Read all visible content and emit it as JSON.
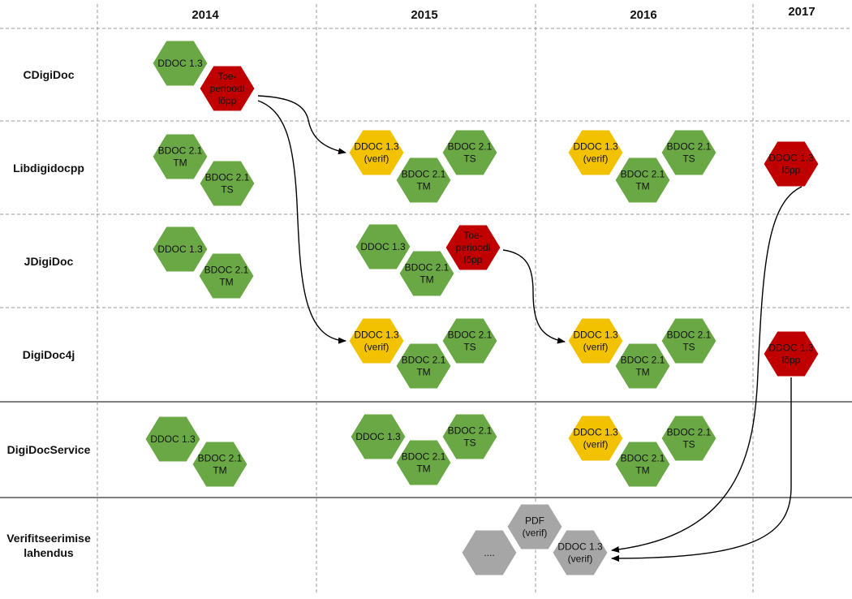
{
  "years": [
    "2014",
    "2015",
    "2016",
    "2017"
  ],
  "rows": [
    {
      "label": [
        "CDigiDoc"
      ]
    },
    {
      "label": [
        "Libdigidocpp"
      ]
    },
    {
      "label": [
        "JDigiDoc"
      ]
    },
    {
      "label": [
        "DigiDoc4j"
      ]
    },
    {
      "label": [
        "DigiDocService"
      ]
    },
    {
      "label": [
        "Verifitseerimise",
        "lahendus"
      ]
    }
  ],
  "colors": {
    "green": "#6aa845",
    "yellow": "#f2c200",
    "red": "#c00000",
    "gray": "#a6a6a6",
    "divider_dashed": "#9a9a9a",
    "divider_solid": "#7f7f7f",
    "arrow": "#000000"
  },
  "hexagons": [
    {
      "id": "cdd-ddoc13-2014",
      "row": 0,
      "color": "green",
      "lines": [
        "DDOC 1.3"
      ]
    },
    {
      "id": "cdd-toe-perioodi-lopp",
      "row": 0,
      "color": "red",
      "lines": [
        "Toe-",
        "perioodi",
        "lõpp"
      ]
    },
    {
      "id": "lib-bdoc21tm-2014",
      "row": 1,
      "color": "green",
      "lines": [
        "BDOC 2.1",
        "TM"
      ]
    },
    {
      "id": "lib-bdoc21ts-2014",
      "row": 1,
      "color": "green",
      "lines": [
        "BDOC 2.1",
        "TS"
      ]
    },
    {
      "id": "lib-ddoc13verif-2015",
      "row": 1,
      "color": "yellow",
      "lines": [
        "DDOC 1.3",
        "(verif)"
      ]
    },
    {
      "id": "lib-bdoc21tm-2015",
      "row": 1,
      "color": "green",
      "lines": [
        "BDOC 2.1",
        "TM"
      ]
    },
    {
      "id": "lib-bdoc21ts-2015",
      "row": 1,
      "color": "green",
      "lines": [
        "BDOC 2.1",
        "TS"
      ]
    },
    {
      "id": "lib-ddoc13verif-2016",
      "row": 1,
      "color": "yellow",
      "lines": [
        "DDOC 1.3",
        "(verif)"
      ]
    },
    {
      "id": "lib-bdoc21tm-2016",
      "row": 1,
      "color": "green",
      "lines": [
        "BDOC 2.1",
        "TM"
      ]
    },
    {
      "id": "lib-bdoc21ts-2016",
      "row": 1,
      "color": "green",
      "lines": [
        "BDOC 2.1",
        "TS"
      ]
    },
    {
      "id": "lib-ddoc13lopp-2017",
      "row": 1,
      "color": "red",
      "lines": [
        "DDOC 1.3",
        "lõpp"
      ]
    },
    {
      "id": "jdd-ddoc13-2014",
      "row": 2,
      "color": "green",
      "lines": [
        "DDOC 1.3"
      ]
    },
    {
      "id": "jdd-bdoc21tm-2014",
      "row": 2,
      "color": "green",
      "lines": [
        "BDOC 2.1",
        "TM"
      ]
    },
    {
      "id": "jdd-ddoc13-2015",
      "row": 2,
      "color": "green",
      "lines": [
        "DDOC 1.3"
      ]
    },
    {
      "id": "jdd-bdoc21tm-2015",
      "row": 2,
      "color": "green",
      "lines": [
        "BDOC 2.1",
        "TM"
      ]
    },
    {
      "id": "jdd-toe-perioodi-lopp",
      "row": 2,
      "color": "red",
      "lines": [
        "Toe-",
        "perioodi",
        "lõpp"
      ]
    },
    {
      "id": "dd4j-ddoc13verif-2015",
      "row": 3,
      "color": "yellow",
      "lines": [
        "DDOC 1.3",
        "(verif)"
      ]
    },
    {
      "id": "dd4j-bdoc21tm-2015",
      "row": 3,
      "color": "green",
      "lines": [
        "BDOC 2.1",
        "TM"
      ]
    },
    {
      "id": "dd4j-bdoc21ts-2015",
      "row": 3,
      "color": "green",
      "lines": [
        "BDOC 2.1",
        "TS"
      ]
    },
    {
      "id": "dd4j-ddoc13verif-2016",
      "row": 3,
      "color": "yellow",
      "lines": [
        "DDOC 1.3",
        "(verif)"
      ]
    },
    {
      "id": "dd4j-bdoc21tm-2016",
      "row": 3,
      "color": "green",
      "lines": [
        "BDOC 2.1",
        "TM"
      ]
    },
    {
      "id": "dd4j-bdoc21ts-2016",
      "row": 3,
      "color": "green",
      "lines": [
        "BDOC 2.1",
        "TS"
      ]
    },
    {
      "id": "dd4j-ddoc13lopp-2017",
      "row": 3,
      "color": "red",
      "lines": [
        "DDOC 1.3",
        "lõpp"
      ]
    },
    {
      "id": "dds-ddoc13-2014",
      "row": 4,
      "color": "green",
      "lines": [
        "DDOC 1.3"
      ]
    },
    {
      "id": "dds-bdoc21tm-2014",
      "row": 4,
      "color": "green",
      "lines": [
        "BDOC 2.1",
        "TM"
      ]
    },
    {
      "id": "dds-ddoc13-2015",
      "row": 4,
      "color": "green",
      "lines": [
        "DDOC 1.3"
      ]
    },
    {
      "id": "dds-bdoc21tm-2015",
      "row": 4,
      "color": "green",
      "lines": [
        "BDOC 2.1",
        "TM"
      ]
    },
    {
      "id": "dds-bdoc21ts-2015",
      "row": 4,
      "color": "green",
      "lines": [
        "BDOC 2.1",
        "TS"
      ]
    },
    {
      "id": "dds-ddoc13verif-2016",
      "row": 4,
      "color": "yellow",
      "lines": [
        "DDOC 1.3",
        "(verif)"
      ]
    },
    {
      "id": "dds-bdoc21tm-2016",
      "row": 4,
      "color": "green",
      "lines": [
        "BDOC 2.1",
        "TM"
      ]
    },
    {
      "id": "dds-bdoc21ts-2016",
      "row": 4,
      "color": "green",
      "lines": [
        "BDOC 2.1",
        "TS"
      ]
    },
    {
      "id": "ver-ellipsis",
      "row": 5,
      "color": "gray",
      "lines": [
        "...."
      ]
    },
    {
      "id": "ver-pdf-verif",
      "row": 5,
      "color": "gray",
      "lines": [
        "PDF",
        "(verif)"
      ]
    },
    {
      "id": "ver-ddoc13-verif",
      "row": 5,
      "color": "gray",
      "lines": [
        "DDOC 1.3",
        "(verif)"
      ]
    }
  ],
  "arrows": [
    {
      "id": "cdd-lopp-to-lib-verif",
      "from": "cdd-toe-perioodi-lopp",
      "to": "lib-ddoc13verif-2015"
    },
    {
      "id": "cdd-lopp-to-dd4j-verif",
      "from": "cdd-toe-perioodi-lopp",
      "to": "dd4j-ddoc13verif-2015"
    },
    {
      "id": "jdd-lopp-to-dd4j-verif-2016",
      "from": "jdd-toe-perioodi-lopp",
      "to": "dd4j-ddoc13verif-2016"
    },
    {
      "id": "lib-lopp-to-ver-ddoc",
      "from": "lib-ddoc13lopp-2017",
      "to": "ver-ddoc13-verif"
    },
    {
      "id": "dd4j-lopp-to-ver-ddoc",
      "from": "dd4j-ddoc13lopp-2017",
      "to": "ver-ddoc13-verif"
    }
  ]
}
